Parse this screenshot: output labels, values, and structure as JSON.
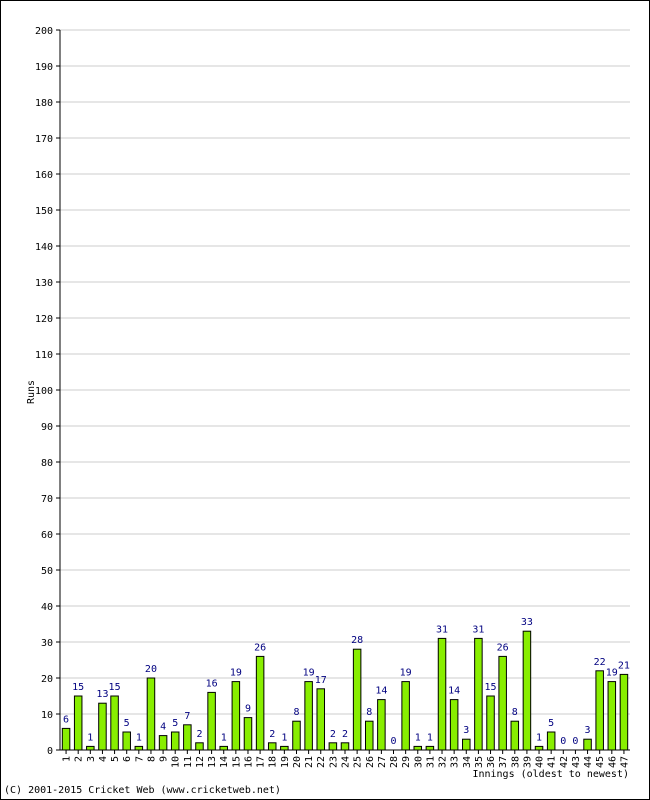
{
  "chart_data": {
    "type": "bar",
    "title": "",
    "xlabel": "Innings (oldest to newest)",
    "ylabel": "Runs",
    "ylim": [
      0,
      200
    ],
    "y_ticks": [
      0,
      10,
      20,
      30,
      40,
      50,
      60,
      70,
      80,
      90,
      100,
      110,
      120,
      130,
      140,
      150,
      160,
      170,
      180,
      190,
      200
    ],
    "grid": true,
    "categories": [
      "1",
      "2",
      "3",
      "4",
      "5",
      "6",
      "7",
      "8",
      "9",
      "10",
      "11",
      "12",
      "13",
      "14",
      "15",
      "16",
      "17",
      "18",
      "19",
      "20",
      "21",
      "22",
      "23",
      "24",
      "25",
      "26",
      "27",
      "28",
      "29",
      "30",
      "31",
      "32",
      "33",
      "34",
      "35",
      "36",
      "37",
      "38",
      "39",
      "40",
      "41",
      "42",
      "43",
      "44",
      "45",
      "46",
      "47"
    ],
    "values": [
      6,
      15,
      1,
      13,
      15,
      5,
      1,
      20,
      4,
      5,
      7,
      2,
      16,
      1,
      19,
      9,
      26,
      2,
      1,
      8,
      19,
      17,
      2,
      2,
      28,
      8,
      14,
      0,
      19,
      1,
      1,
      31,
      14,
      3,
      31,
      15,
      26,
      8,
      33,
      1,
      5,
      0,
      0,
      3,
      22,
      19,
      21
    ],
    "colors": {
      "bar_fill": "#88ee00",
      "bar_stroke": "#000000",
      "value_label": "#000080",
      "grid": "#cccccc"
    }
  },
  "footer": "(C) 2001-2015 Cricket Web (www.cricketweb.net)"
}
